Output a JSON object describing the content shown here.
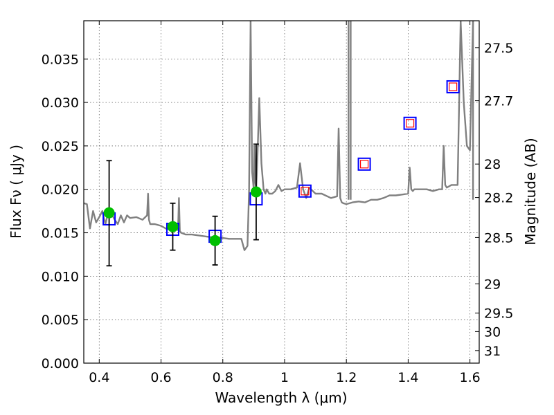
{
  "chart_data": {
    "type": "scatter",
    "xlabel": "Wavelength  λ (μm)",
    "ylabel": "Flux  Fν  ( μJy )",
    "y2label": "Magnitude (AB)",
    "xlim": [
      0.35,
      1.63
    ],
    "ylim": [
      0.0,
      0.0394
    ],
    "grid": true,
    "x_ticks": [
      0.4,
      0.6,
      0.8,
      1.0,
      1.2,
      1.4,
      1.6
    ],
    "x_tick_labels": [
      "0.4",
      "0.6",
      "0.8",
      "1",
      "1.2",
      "1.4",
      "1.6"
    ],
    "y_ticks": [
      0.0,
      0.005,
      0.01,
      0.015,
      0.02,
      0.025,
      0.03,
      0.035
    ],
    "y_tick_labels": [
      "0.000",
      "0.005",
      "0.010",
      "0.015",
      "0.020",
      "0.025",
      "0.030",
      "0.035"
    ],
    "mag_ticks": [
      {
        "mag": 27.5,
        "label": "27.5"
      },
      {
        "mag": 27.7,
        "label": "27.7"
      },
      {
        "mag": 28.0,
        "label": "28"
      },
      {
        "mag": 28.2,
        "label": "28.2"
      },
      {
        "mag": 28.5,
        "label": "28.5"
      },
      {
        "mag": 29.0,
        "label": "29"
      },
      {
        "mag": 29.5,
        "label": "29.5"
      },
      {
        "mag": 30.0,
        "label": "30"
      },
      {
        "mag": 31.0,
        "label": "31"
      }
    ],
    "colors": {
      "spectrum": "#808080",
      "model_box": "#0000ff",
      "predicted_box": "#ff0000",
      "observed": "#00bf00",
      "errorbar": "#000000",
      "grid": "#666666"
    },
    "spectrum": {
      "name": "",
      "x": [
        0.35,
        0.36,
        0.37,
        0.38,
        0.39,
        0.4,
        0.41,
        0.42,
        0.43,
        0.44,
        0.45,
        0.46,
        0.47,
        0.48,
        0.49,
        0.5,
        0.52,
        0.54,
        0.555,
        0.558,
        0.561,
        0.565,
        0.58,
        0.6,
        0.62,
        0.64,
        0.655,
        0.658,
        0.661,
        0.665,
        0.68,
        0.7,
        0.72,
        0.74,
        0.76,
        0.78,
        0.8,
        0.82,
        0.84,
        0.86,
        0.87,
        0.88,
        0.885,
        0.89,
        0.895,
        0.9,
        0.902,
        0.905,
        0.908,
        0.912,
        0.918,
        0.925,
        0.932,
        0.938,
        0.942,
        0.95,
        0.96,
        0.97,
        0.98,
        0.99,
        1.0,
        1.02,
        1.04,
        1.05,
        1.06,
        1.07,
        1.08,
        1.1,
        1.12,
        1.15,
        1.17,
        1.175,
        1.18,
        1.185,
        1.19,
        1.2,
        1.22,
        1.24,
        1.26,
        1.28,
        1.3,
        1.32,
        1.34,
        1.36,
        1.38,
        1.4,
        1.405,
        1.41,
        1.415,
        1.42,
        1.44,
        1.46,
        1.48,
        1.5,
        1.51,
        1.515,
        1.52,
        1.525,
        1.53,
        1.54,
        1.56,
        1.57,
        1.58,
        1.59,
        1.6,
        1.61
      ],
      "y": [
        0.0184,
        0.0183,
        0.0155,
        0.0175,
        0.0162,
        0.0168,
        0.0175,
        0.016,
        0.0175,
        0.0172,
        0.0165,
        0.016,
        0.017,
        0.0162,
        0.017,
        0.0167,
        0.0168,
        0.0165,
        0.017,
        0.0195,
        0.0165,
        0.016,
        0.016,
        0.0158,
        0.0154,
        0.0157,
        0.0153,
        0.019,
        0.0152,
        0.015,
        0.0148,
        0.0148,
        0.0147,
        0.0146,
        0.0145,
        0.0145,
        0.0144,
        0.0143,
        0.0143,
        0.0143,
        0.013,
        0.0135,
        0.02,
        0.0394,
        0.022,
        0.02,
        0.025,
        0.021,
        0.02,
        0.0235,
        0.0305,
        0.023,
        0.02,
        0.0195,
        0.02,
        0.0195,
        0.0195,
        0.0198,
        0.0205,
        0.0198,
        0.02,
        0.02,
        0.0202,
        0.023,
        0.02,
        0.019,
        0.0202,
        0.0195,
        0.0195,
        0.019,
        0.0192,
        0.027,
        0.019,
        0.0185,
        0.0184,
        0.0183,
        0.0185,
        0.0186,
        0.0185,
        0.0188,
        0.0188,
        0.019,
        0.0193,
        0.0193,
        0.0194,
        0.0195,
        0.0225,
        0.02,
        0.0198,
        0.02,
        0.02,
        0.02,
        0.0198,
        0.02,
        0.02,
        0.025,
        0.0205,
        0.0202,
        0.0203,
        0.0205,
        0.0205,
        0.0394,
        0.03,
        0.025,
        0.0245,
        0.0394
      ]
    },
    "spectrum_spikes": [
      1.207,
      1.214,
      1.61
    ],
    "model_boxes": [
      {
        "x": 0.432,
        "y": 0.0166,
        "predicted": false
      },
      {
        "x": 0.638,
        "y": 0.0154,
        "predicted": false
      },
      {
        "x": 0.775,
        "y": 0.0146,
        "predicted": false
      },
      {
        "x": 0.908,
        "y": 0.0189,
        "predicted": false
      },
      {
        "x": 1.066,
        "y": 0.0198,
        "predicted": true
      },
      {
        "x": 1.258,
        "y": 0.0229,
        "predicted": true
      },
      {
        "x": 1.406,
        "y": 0.0276,
        "predicted": true
      },
      {
        "x": 1.545,
        "y": 0.0318,
        "predicted": true
      }
    ],
    "observed": [
      {
        "x": 0.432,
        "y": 0.0173,
        "err_low": 0.0112,
        "err_high": 0.0233
      },
      {
        "x": 0.638,
        "y": 0.0157,
        "err_low": 0.013,
        "err_high": 0.0184
      },
      {
        "x": 0.775,
        "y": 0.0141,
        "err_low": 0.0113,
        "err_high": 0.0169
      },
      {
        "x": 0.908,
        "y": 0.0197,
        "err_low": 0.0142,
        "err_high": 0.0252
      }
    ]
  }
}
